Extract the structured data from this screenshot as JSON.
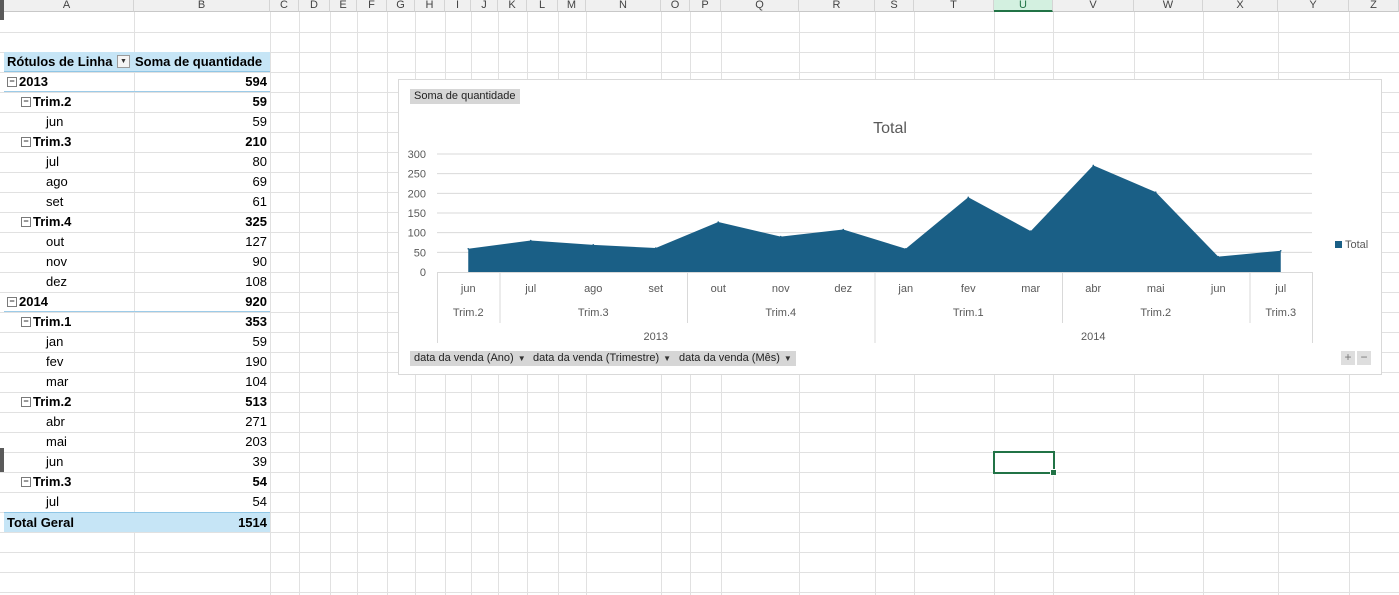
{
  "sheet": {
    "columns": [
      "A",
      "B",
      "C",
      "D",
      "E",
      "F",
      "G",
      "H",
      "I",
      "J",
      "K",
      "L",
      "M",
      "N",
      "O",
      "P",
      "Q",
      "R",
      "S",
      "T",
      "U",
      "V",
      "W",
      "X",
      "Y",
      "Z"
    ],
    "active_column": "U"
  },
  "pivot_table": {
    "header_label": "Rótulos de Linha",
    "header_value": "Soma de quantidade",
    "rows": [
      {
        "label": "2013",
        "value": "594",
        "level": 0,
        "collapse": true
      },
      {
        "label": "Trim.2",
        "value": "59",
        "level": 1,
        "collapse": true
      },
      {
        "label": "jun",
        "value": "59",
        "level": 2,
        "collapse": false
      },
      {
        "label": "Trim.3",
        "value": "210",
        "level": 1,
        "collapse": true
      },
      {
        "label": "jul",
        "value": "80",
        "level": 2,
        "collapse": false
      },
      {
        "label": "ago",
        "value": "69",
        "level": 2,
        "collapse": false
      },
      {
        "label": "set",
        "value": "61",
        "level": 2,
        "collapse": false
      },
      {
        "label": "Trim.4",
        "value": "325",
        "level": 1,
        "collapse": true
      },
      {
        "label": "out",
        "value": "127",
        "level": 2,
        "collapse": false
      },
      {
        "label": "nov",
        "value": "90",
        "level": 2,
        "collapse": false
      },
      {
        "label": "dez",
        "value": "108",
        "level": 2,
        "collapse": false
      },
      {
        "label": "2014",
        "value": "920",
        "level": 0,
        "collapse": true
      },
      {
        "label": "Trim.1",
        "value": "353",
        "level": 1,
        "collapse": true
      },
      {
        "label": "jan",
        "value": "59",
        "level": 2,
        "collapse": false
      },
      {
        "label": "fev",
        "value": "190",
        "level": 2,
        "collapse": false
      },
      {
        "label": "mar",
        "value": "104",
        "level": 2,
        "collapse": false
      },
      {
        "label": "Trim.2",
        "value": "513",
        "level": 1,
        "collapse": true
      },
      {
        "label": "abr",
        "value": "271",
        "level": 2,
        "collapse": false
      },
      {
        "label": "mai",
        "value": "203",
        "level": 2,
        "collapse": false
      },
      {
        "label": "jun",
        "value": "39",
        "level": 2,
        "collapse": false
      },
      {
        "label": "Trim.3",
        "value": "54",
        "level": 1,
        "collapse": true
      },
      {
        "label": "jul",
        "value": "54",
        "level": 2,
        "collapse": false
      }
    ],
    "total_label": "Total Geral",
    "total_value": "1514"
  },
  "pivot_chart": {
    "value_field_button": "Soma de quantidade",
    "axis_field_buttons": [
      "data da venda (Ano)",
      "data da venda (Trimestre)",
      "data da venda (Mês)"
    ],
    "zoom_in": "+",
    "zoom_out": "−"
  },
  "chart_data": {
    "type": "area",
    "title": "Total",
    "xlabel": "",
    "ylabel": "",
    "ylim": [
      0,
      300
    ],
    "yticks": [
      0,
      50,
      100,
      150,
      200,
      250,
      300
    ],
    "grid": true,
    "legend": "right",
    "color": "#1a5f86",
    "categories": [
      "jun",
      "jul",
      "ago",
      "set",
      "out",
      "nov",
      "dez",
      "jan",
      "fev",
      "mar",
      "abr",
      "mai",
      "jun",
      "jul"
    ],
    "quarter_groups": [
      {
        "label": "Trim.2",
        "span": 1
      },
      {
        "label": "Trim.3",
        "span": 3
      },
      {
        "label": "Trim.4",
        "span": 3
      },
      {
        "label": "Trim.1",
        "span": 3
      },
      {
        "label": "Trim.2",
        "span": 3
      },
      {
        "label": "Trim.3",
        "span": 1
      }
    ],
    "year_groups": [
      {
        "label": "2013",
        "span": 7
      },
      {
        "label": "2014",
        "span": 7
      }
    ],
    "series": [
      {
        "name": "Total",
        "values": [
          59,
          80,
          69,
          61,
          127,
          90,
          108,
          59,
          190,
          104,
          271,
          203,
          39,
          54
        ]
      }
    ]
  }
}
